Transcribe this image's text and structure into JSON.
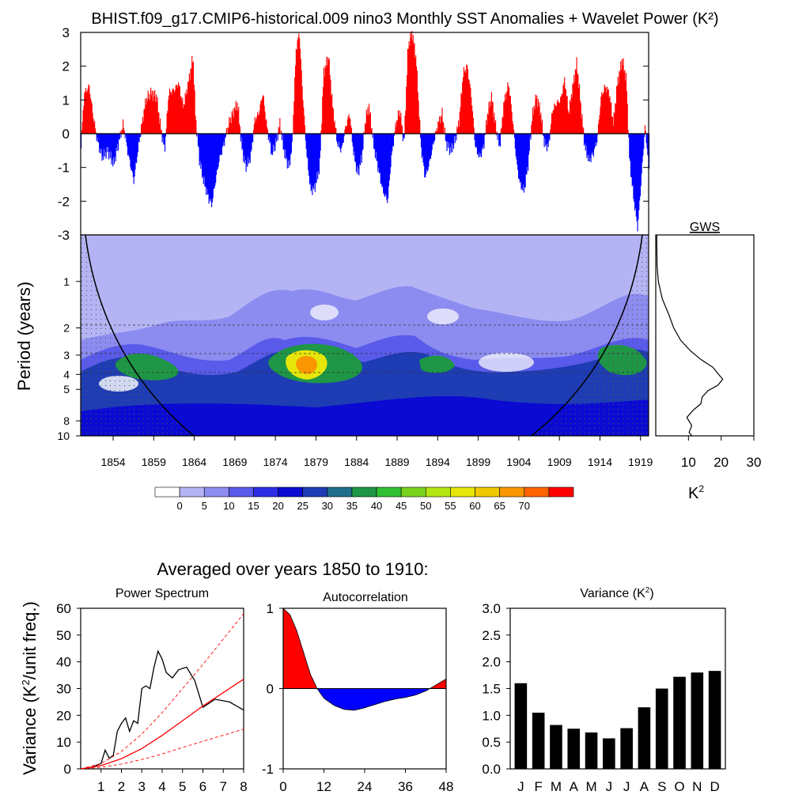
{
  "title": "BHIST.f09_g17.CMIP6-historical.009 nino3 Monthly SST Anomalies + Wavelet Power (K²)",
  "colors": {
    "positive": "#ff0000",
    "negative": "#0000ff",
    "shade_zero": "#b4b4f5"
  },
  "chart_data": [
    {
      "id": "sst_anomaly",
      "type": "area",
      "title": "BHIST.f09_g17.CMIP6-historical.009 nino3 Monthly SST Anomalies + Wavelet Power (K²)",
      "yticks": [
        "3",
        "2",
        "1",
        "0",
        "-1",
        "-2",
        "-3"
      ],
      "ylim": [
        -3,
        3
      ],
      "xlim": [
        1850,
        1920
      ],
      "note": "monthly anomaly bars: red above zero, blue below zero",
      "points": [
        [
          1850.0,
          -0.3
        ],
        [
          1850.4,
          1.2
        ],
        [
          1851.0,
          1.4
        ],
        [
          1851.5,
          0.5
        ],
        [
          1852.0,
          -0.2
        ],
        [
          1852.6,
          -0.7
        ],
        [
          1853.3,
          -0.5
        ],
        [
          1854.0,
          -0.9
        ],
        [
          1854.6,
          -0.3
        ],
        [
          1855.2,
          0.3
        ],
        [
          1855.8,
          -0.6
        ],
        [
          1856.5,
          -1.4
        ],
        [
          1857.0,
          -0.5
        ],
        [
          1857.5,
          0.3
        ],
        [
          1858.0,
          1.0
        ],
        [
          1858.6,
          1.2
        ],
        [
          1859.3,
          1.1
        ],
        [
          1859.8,
          0.2
        ],
        [
          1860.3,
          -0.5
        ],
        [
          1860.8,
          1.2
        ],
        [
          1861.5,
          1.3
        ],
        [
          1862.0,
          1.5
        ],
        [
          1862.6,
          0.8
        ],
        [
          1863.3,
          1.6
        ],
        [
          1863.8,
          2.3
        ],
        [
          1864.1,
          0.5
        ],
        [
          1864.6,
          -0.8
        ],
        [
          1865.1,
          -1.4
        ],
        [
          1865.7,
          -1.9
        ],
        [
          1866.1,
          -2.1
        ],
        [
          1866.5,
          -1.5
        ],
        [
          1867.0,
          -0.8
        ],
        [
          1867.6,
          -0.3
        ],
        [
          1868.2,
          0.3
        ],
        [
          1868.7,
          0.6
        ],
        [
          1869.3,
          0.9
        ],
        [
          1869.8,
          -0.4
        ],
        [
          1870.3,
          -1.0
        ],
        [
          1870.9,
          -0.7
        ],
        [
          1871.4,
          0.4
        ],
        [
          1871.9,
          0.6
        ],
        [
          1872.4,
          1.2
        ],
        [
          1872.9,
          0.2
        ],
        [
          1873.5,
          -0.6
        ],
        [
          1874.0,
          -0.3
        ],
        [
          1874.5,
          0.3
        ],
        [
          1875.0,
          -0.5
        ],
        [
          1875.6,
          -1.0
        ],
        [
          1876.0,
          -0.4
        ],
        [
          1876.5,
          2.5
        ],
        [
          1876.9,
          3.0
        ],
        [
          1877.3,
          1.2
        ],
        [
          1877.8,
          -0.6
        ],
        [
          1878.3,
          -1.7
        ],
        [
          1878.8,
          -1.6
        ],
        [
          1879.4,
          -1.0
        ],
        [
          1879.9,
          1.8
        ],
        [
          1880.5,
          2.3
        ],
        [
          1881.0,
          0.8
        ],
        [
          1881.6,
          -0.3
        ],
        [
          1882.1,
          -0.5
        ],
        [
          1882.6,
          0.2
        ],
        [
          1883.1,
          0.6
        ],
        [
          1883.6,
          -0.6
        ],
        [
          1884.1,
          -1.2
        ],
        [
          1884.6,
          -0.7
        ],
        [
          1885.1,
          0.5
        ],
        [
          1885.5,
          0.8
        ],
        [
          1886.1,
          -0.4
        ],
        [
          1886.6,
          -1.0
        ],
        [
          1887.2,
          -1.7
        ],
        [
          1887.8,
          -2.0
        ],
        [
          1888.2,
          -0.8
        ],
        [
          1888.8,
          0.3
        ],
        [
          1889.3,
          0.7
        ],
        [
          1889.8,
          -0.3
        ],
        [
          1890.3,
          2.6
        ],
        [
          1890.8,
          3.0
        ],
        [
          1891.3,
          2.2
        ],
        [
          1891.9,
          -0.4
        ],
        [
          1892.4,
          -1.3
        ],
        [
          1892.9,
          -0.9
        ],
        [
          1893.5,
          -0.2
        ],
        [
          1894.0,
          0.3
        ],
        [
          1894.5,
          0.6
        ],
        [
          1895.0,
          -0.3
        ],
        [
          1895.6,
          -0.5
        ],
        [
          1896.1,
          -0.2
        ],
        [
          1896.6,
          0.4
        ],
        [
          1897.1,
          1.8
        ],
        [
          1897.6,
          2.0
        ],
        [
          1898.1,
          1.1
        ],
        [
          1898.6,
          -0.4
        ],
        [
          1899.1,
          -0.7
        ],
        [
          1899.6,
          -0.4
        ],
        [
          1900.1,
          0.6
        ],
        [
          1900.6,
          1.1
        ],
        [
          1901.1,
          0.2
        ],
        [
          1901.6,
          -0.4
        ],
        [
          1902.1,
          0.9
        ],
        [
          1902.7,
          1.5
        ],
        [
          1903.2,
          0.4
        ],
        [
          1903.7,
          -0.9
        ],
        [
          1904.1,
          -1.5
        ],
        [
          1904.6,
          -1.7
        ],
        [
          1905.1,
          -0.9
        ],
        [
          1905.6,
          0.5
        ],
        [
          1906.1,
          1.1
        ],
        [
          1906.6,
          0.7
        ],
        [
          1907.1,
          -0.3
        ],
        [
          1907.6,
          -0.4
        ],
        [
          1908.1,
          0.7
        ],
        [
          1908.6,
          0.9
        ],
        [
          1909.1,
          1.0
        ],
        [
          1909.6,
          1.6
        ],
        [
          1910.1,
          0.6
        ],
        [
          1910.6,
          1.4
        ],
        [
          1911.1,
          2.1
        ],
        [
          1911.6,
          0.8
        ],
        [
          1912.1,
          -0.4
        ],
        [
          1912.6,
          -0.8
        ],
        [
          1913.1,
          -0.6
        ],
        [
          1913.6,
          -0.2
        ],
        [
          1914.1,
          1.1
        ],
        [
          1914.6,
          1.4
        ],
        [
          1915.1,
          1.2
        ],
        [
          1915.6,
          0.3
        ],
        [
          1916.1,
          1.5
        ],
        [
          1916.7,
          2.2
        ],
        [
          1917.2,
          1.6
        ],
        [
          1917.6,
          -0.8
        ],
        [
          1918.1,
          -1.9
        ],
        [
          1918.6,
          -2.8
        ],
        [
          1919.0,
          -1.5
        ],
        [
          1919.5,
          0.2
        ],
        [
          1920.0,
          -1.0
        ]
      ]
    },
    {
      "id": "wavelet_power",
      "type": "heatmap",
      "ylabel": "Period (years)",
      "yticks": [
        "1",
        "2",
        "3",
        "4",
        "5",
        "8",
        "10"
      ],
      "xticks": [
        "1854",
        "1859",
        "1864",
        "1869",
        "1874",
        "1879",
        "1884",
        "1889",
        "1894",
        "1899",
        "1904",
        "1909",
        "1914",
        "1919"
      ],
      "colorbar_labels": [
        "0",
        "5",
        "10",
        "15",
        "20",
        "25",
        "30",
        "35",
        "40",
        "45",
        "50",
        "55",
        "60",
        "65",
        "70"
      ],
      "colorbar_colors": [
        "#ffffff",
        "#b4b4f5",
        "#8c8cf0",
        "#5a5aeb",
        "#2d2de6",
        "#0a0ad2",
        "#1e3cb4",
        "#1e6e8c",
        "#1e9646",
        "#32be32",
        "#78d21e",
        "#b4e614",
        "#e6e60a",
        "#f0c800",
        "#fa9600",
        "#ff6400",
        "#ff0000"
      ],
      "peak_power": 70,
      "peak_period_years": 4,
      "peak_year": 1877
    },
    {
      "id": "global_wavelet_spectrum",
      "type": "line",
      "title": "GWS",
      "xlabel": "K²",
      "xticks": [
        "10",
        "20",
        "30"
      ],
      "xlim": [
        0,
        30
      ],
      "points": [
        [
          0.3,
          0.5
        ],
        [
          0.4,
          0.8
        ],
        [
          0.8,
          1.0
        ],
        [
          2.0,
          1.3
        ],
        [
          3.8,
          1.6
        ],
        [
          5.5,
          2.0
        ],
        [
          7.6,
          2.4
        ],
        [
          10.5,
          2.8
        ],
        [
          13.8,
          3.2
        ],
        [
          17.5,
          3.6
        ],
        [
          19.2,
          4.0
        ],
        [
          20.5,
          4.3
        ],
        [
          19.0,
          4.7
        ],
        [
          16.0,
          5.1
        ],
        [
          14.2,
          5.6
        ],
        [
          13.8,
          6.2
        ],
        [
          11.5,
          6.8
        ],
        [
          9.5,
          7.6
        ],
        [
          11.0,
          8.6
        ],
        [
          10.2,
          9.5
        ],
        [
          11.0,
          10.0
        ]
      ]
    },
    {
      "id": "power_spectrum",
      "type": "line",
      "title": "Power Spectrum",
      "ylabel": "Variance (K²/unit freq.)",
      "xticks": [
        "1",
        "2",
        "3",
        "4",
        "5",
        "6",
        "7",
        "8"
      ],
      "yticks": [
        "0",
        "10",
        "20",
        "30",
        "40",
        "50",
        "60"
      ],
      "xlim": [
        0,
        8
      ],
      "ylim": [
        0,
        60
      ],
      "series": [
        {
          "role": "spectrum",
          "color": "#000000",
          "points": [
            [
              0,
              0
            ],
            [
              0.5,
              0.5
            ],
            [
              1.0,
              2.0
            ],
            [
              1.2,
              7.0
            ],
            [
              1.4,
              4.0
            ],
            [
              1.6,
              5.0
            ],
            [
              1.8,
              14.0
            ],
            [
              2.0,
              17.0
            ],
            [
              2.2,
              19.0
            ],
            [
              2.4,
              14.0
            ],
            [
              2.6,
              18.0
            ],
            [
              2.8,
              17.0
            ],
            [
              3.0,
              30.0
            ],
            [
              3.2,
              31.0
            ],
            [
              3.4,
              30.0
            ],
            [
              3.6,
              38.0
            ],
            [
              3.8,
              44.0
            ],
            [
              4.0,
              41.0
            ],
            [
              4.2,
              36.0
            ],
            [
              4.5,
              34.0
            ],
            [
              4.8,
              37.0
            ],
            [
              5.2,
              38.0
            ],
            [
              5.6,
              33.0
            ],
            [
              6.0,
              23.0
            ],
            [
              6.6,
              26.0
            ],
            [
              7.3,
              25.0
            ],
            [
              8.0,
              22.0
            ]
          ]
        },
        {
          "role": "red-noise",
          "color": "#ff0000",
          "dash": false,
          "points": [
            [
              0,
              0
            ],
            [
              1,
              1.2
            ],
            [
              2,
              3.8
            ],
            [
              3,
              7.6
            ],
            [
              4,
              12.5
            ],
            [
              5,
              18.0
            ],
            [
              6,
              23.5
            ],
            [
              7,
              28.5
            ],
            [
              8,
              33.5
            ]
          ]
        },
        {
          "role": "upper-bound",
          "color": "#ff0000",
          "dash": true,
          "points": [
            [
              0,
              0
            ],
            [
              1,
              2.0
            ],
            [
              2,
              6.5
            ],
            [
              3,
              13.0
            ],
            [
              4,
              21.0
            ],
            [
              5,
              30.0
            ],
            [
              6,
              39.0
            ],
            [
              7,
              48.5
            ],
            [
              8,
              58.0
            ]
          ]
        },
        {
          "role": "lower-bound",
          "color": "#ff0000",
          "dash": true,
          "points": [
            [
              0,
              0
            ],
            [
              1,
              0.6
            ],
            [
              2,
              1.8
            ],
            [
              3,
              3.5
            ],
            [
              4,
              5.6
            ],
            [
              5,
              8.0
            ],
            [
              6,
              10.3
            ],
            [
              7,
              12.6
            ],
            [
              8,
              14.8
            ]
          ]
        }
      ]
    },
    {
      "id": "autocorrelation",
      "type": "area",
      "title": "Autocorrelation",
      "xticks": [
        "0",
        "12",
        "24",
        "36",
        "48"
      ],
      "yticks": [
        "1",
        "0",
        "-1"
      ],
      "xlim": [
        0,
        48
      ],
      "ylim": [
        -1,
        1
      ],
      "points": [
        [
          0,
          1.0
        ],
        [
          2,
          0.92
        ],
        [
          4,
          0.72
        ],
        [
          6,
          0.45
        ],
        [
          8,
          0.18
        ],
        [
          10,
          0.0
        ],
        [
          12,
          -0.12
        ],
        [
          15,
          -0.21
        ],
        [
          18,
          -0.26
        ],
        [
          21,
          -0.27
        ],
        [
          24,
          -0.24
        ],
        [
          27,
          -0.2
        ],
        [
          30,
          -0.16
        ],
        [
          33,
          -0.13
        ],
        [
          36,
          -0.11
        ],
        [
          39,
          -0.08
        ],
        [
          42,
          -0.03
        ],
        [
          44,
          0.02
        ],
        [
          46,
          0.07
        ],
        [
          48,
          0.12
        ]
      ]
    },
    {
      "id": "monthly_variance",
      "type": "bar",
      "title": "Variance (K²)",
      "categories": [
        "J",
        "F",
        "M",
        "A",
        "M",
        "J",
        "J",
        "A",
        "S",
        "O",
        "N",
        "D"
      ],
      "values": [
        1.6,
        1.05,
        0.82,
        0.75,
        0.68,
        0.57,
        0.76,
        1.15,
        1.5,
        1.72,
        1.8,
        1.83
      ],
      "yticks": [
        "0.0",
        "0.5",
        "1.0",
        "1.5",
        "2.0",
        "2.5",
        "3.0"
      ],
      "ylim": [
        0,
        3
      ]
    }
  ],
  "bottom_section_title": "Averaged over years 1850 to 1910:"
}
